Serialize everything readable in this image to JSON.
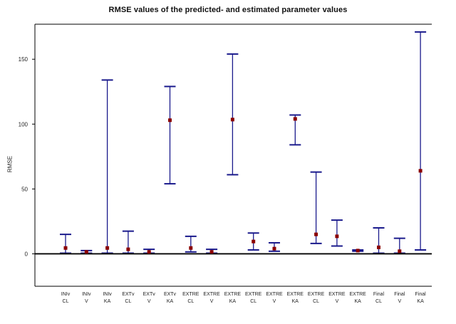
{
  "chart_data": {
    "type": "errorbar",
    "title": "RMSE values of the predicted- and estimated parameter values",
    "xlabel": "",
    "ylabel": "RMSE",
    "ylim": [
      -25,
      177
    ],
    "yticks": [
      0,
      50,
      100,
      150
    ],
    "reference_line": 0,
    "grid": false,
    "legend": "none",
    "colors": {
      "bar": "#1a1a8c",
      "point": "#8b0000",
      "axis": "#000000"
    },
    "categories": [
      "INIv CL",
      "INIv V",
      "INIv KA",
      "EXTv CL",
      "EXTv V",
      "EXTv KA",
      "EXTRE CL",
      "EXTRE V",
      "EXTRE KA",
      "EXTRE CL",
      "EXTRE V",
      "EXTRE KA",
      "EXTRE CL",
      "EXTRE V",
      "EXTRE KA",
      "Final CL",
      "Final V",
      "Final KA"
    ],
    "tick_labels": [
      [
        "INIv",
        "CL"
      ],
      [
        "INIv",
        "V"
      ],
      [
        "INIv",
        "KA"
      ],
      [
        "EXTv",
        "CL"
      ],
      [
        "EXTv",
        "V"
      ],
      [
        "EXTv",
        "KA"
      ],
      [
        "EXTRE",
        "CL"
      ],
      [
        "EXTRE",
        "V"
      ],
      [
        "EXTRE",
        "KA"
      ],
      [
        "EXTRE",
        "CL"
      ],
      [
        "EXTRE",
        "V"
      ],
      [
        "EXTRE",
        "KA"
      ],
      [
        "EXTRE",
        "CL"
      ],
      [
        "EXTRE",
        "V"
      ],
      [
        "EXTRE",
        "KA"
      ],
      [
        "Final",
        "CL"
      ],
      [
        "Final",
        "V"
      ],
      [
        "Final",
        "KA"
      ]
    ],
    "points": [
      4.5,
      1.5,
      4.5,
      3.5,
      1.5,
      103,
      4.5,
      1.5,
      103.5,
      9.5,
      4,
      104,
      15,
      13.5,
      2.5,
      5,
      2,
      64
    ],
    "lower": [
      0.5,
      0.5,
      0.5,
      0.5,
      0.5,
      54,
      1.5,
      0.5,
      61,
      3,
      2,
      84,
      8,
      6,
      2,
      0.5,
      0.5,
      3
    ],
    "upper": [
      15,
      2.5,
      134,
      17.5,
      3.5,
      129,
      13.5,
      3.5,
      154,
      16,
      8.5,
      107,
      63,
      26,
      3,
      20,
      12,
      171
    ]
  }
}
